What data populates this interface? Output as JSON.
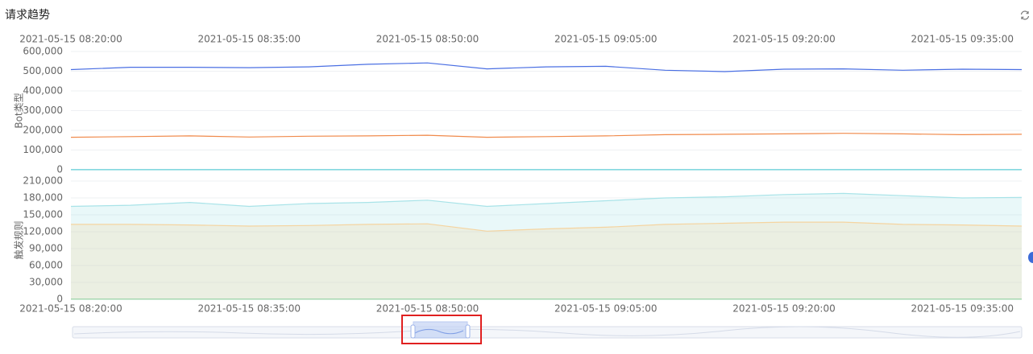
{
  "header": {
    "title": "请求趋势"
  },
  "chart_data": [
    {
      "type": "line",
      "ylabel": "Bot类型",
      "x": [
        "2021-05-15 08:20:00",
        "2021-05-15 08:25:00",
        "2021-05-15 08:30:00",
        "2021-05-15 08:35:00",
        "2021-05-15 08:40:00",
        "2021-05-15 08:45:00",
        "2021-05-15 08:50:00",
        "2021-05-15 08:55:00",
        "2021-05-15 09:00:00",
        "2021-05-15 09:05:00",
        "2021-05-15 09:10:00",
        "2021-05-15 09:15:00",
        "2021-05-15 09:20:00",
        "2021-05-15 09:25:00",
        "2021-05-15 09:30:00",
        "2021-05-15 09:35:00",
        "2021-05-15 09:40:00"
      ],
      "xticks": [
        "2021-05-15 08:20:00",
        "2021-05-15 08:35:00",
        "2021-05-15 08:50:00",
        "2021-05-15 09:05:00",
        "2021-05-15 09:20:00",
        "2021-05-15 09:35:00"
      ],
      "ylim": [
        0,
        600000
      ],
      "yticks": [
        0,
        {
          "value": 100000,
          "label": "100,000"
        },
        {
          "value": 200000,
          "label": "200,000"
        },
        {
          "value": 300000,
          "label": "300,000"
        },
        {
          "value": 400000,
          "label": "400,000"
        },
        {
          "value": 500000,
          "label": "500,000"
        },
        {
          "value": 600000,
          "label": "600,000"
        }
      ],
      "grid": true,
      "series": [
        {
          "color": "#4a6fe3",
          "values": [
            508000,
            520000,
            520000,
            518000,
            522000,
            535000,
            542000,
            512000,
            522000,
            525000,
            505000,
            498000,
            510000,
            512000,
            505000,
            510000,
            508000
          ]
        },
        {
          "color": "#f08a4b",
          "values": [
            165000,
            168000,
            172000,
            166000,
            170000,
            172000,
            175000,
            165000,
            168000,
            172000,
            178000,
            180000,
            182000,
            185000,
            182000,
            178000,
            180000
          ]
        },
        {
          "color": "#5ccbd6",
          "values": [
            500,
            500,
            500,
            500,
            500,
            500,
            500,
            500,
            500,
            500,
            500,
            500,
            500,
            500,
            500,
            500,
            500
          ]
        }
      ]
    },
    {
      "type": "area",
      "ylabel": "触发规则",
      "x": [
        "2021-05-15 08:20:00",
        "2021-05-15 08:25:00",
        "2021-05-15 08:30:00",
        "2021-05-15 08:35:00",
        "2021-05-15 08:40:00",
        "2021-05-15 08:45:00",
        "2021-05-15 08:50:00",
        "2021-05-15 08:55:00",
        "2021-05-15 09:00:00",
        "2021-05-15 09:05:00",
        "2021-05-15 09:10:00",
        "2021-05-15 09:15:00",
        "2021-05-15 09:20:00",
        "2021-05-15 09:25:00",
        "2021-05-15 09:30:00",
        "2021-05-15 09:35:00",
        "2021-05-15 09:40:00"
      ],
      "xticks": [
        "2021-05-15 08:20:00",
        "2021-05-15 08:35:00",
        "2021-05-15 08:50:00",
        "2021-05-15 09:05:00",
        "2021-05-15 09:20:00",
        "2021-05-15 09:35:00"
      ],
      "ylim": [
        0,
        210000
      ],
      "yticks": [
        0,
        {
          "value": 30000,
          "label": "30,000"
        },
        {
          "value": 60000,
          "label": "60,000"
        },
        {
          "value": 90000,
          "label": "90,000"
        },
        {
          "value": 120000,
          "label": "120,000"
        },
        {
          "value": 150000,
          "label": "150,000"
        },
        {
          "value": 180000,
          "label": "180,000"
        },
        {
          "value": 210000,
          "label": "210,000"
        }
      ],
      "grid": true,
      "series": [
        {
          "color": "#a8e3e8",
          "values": [
            165000,
            167000,
            172000,
            165000,
            170000,
            172000,
            176000,
            165000,
            170000,
            175000,
            180000,
            182000,
            186000,
            188000,
            184000,
            180000,
            181000
          ]
        },
        {
          "color": "#f5d4a0",
          "values": [
            133000,
            133000,
            132000,
            130000,
            131000,
            133000,
            134000,
            121000,
            125000,
            128000,
            133000,
            135000,
            137000,
            137000,
            133000,
            132000,
            130000
          ]
        },
        {
          "color": "#8fd19e",
          "values": [
            300,
            300,
            300,
            300,
            300,
            300,
            300,
            300,
            300,
            300,
            300,
            300,
            300,
            300,
            300,
            300,
            300
          ]
        }
      ]
    }
  ]
}
